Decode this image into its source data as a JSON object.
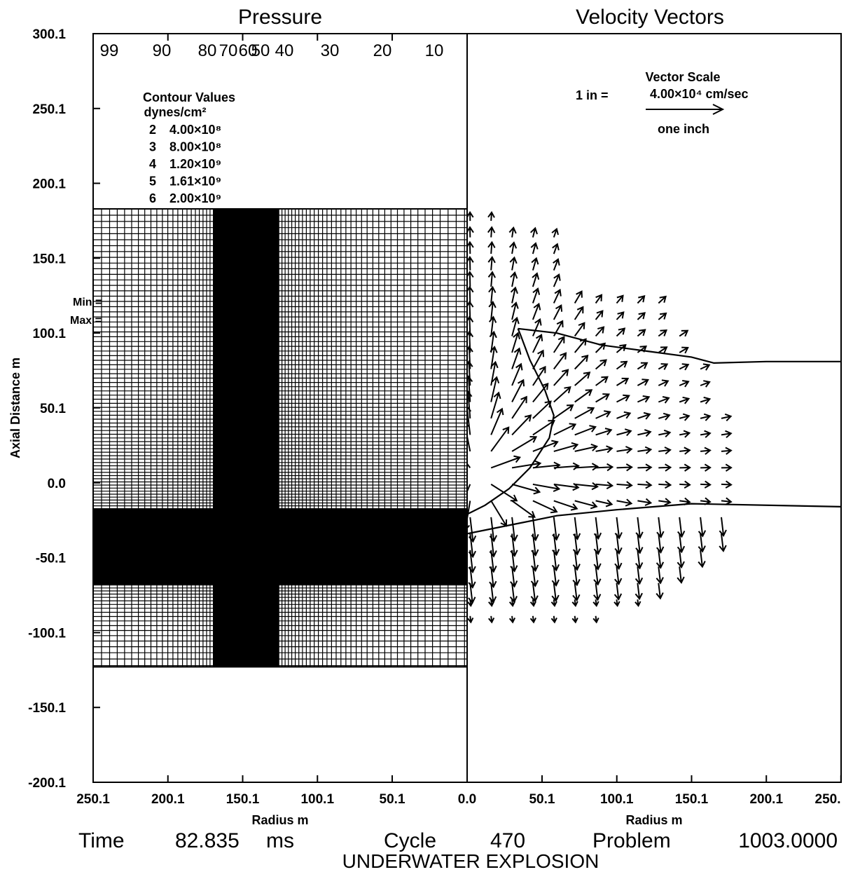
{
  "panels": {
    "left_title": "Pressure",
    "right_title": "Velocity Vectors"
  },
  "chart_data": [
    {
      "type": "contour",
      "title": "Pressure",
      "xlabel": "Radius m",
      "ylabel": "Axial Distance m",
      "x_ticks": [
        "250.1",
        "200.1",
        "150.1",
        "100.1",
        "50.1",
        "0.0"
      ],
      "y_ticks": [
        "300.1",
        "250.1",
        "200.1",
        "150.1",
        "100.1",
        "50.1",
        "0.0",
        "-50.1",
        "-100.1",
        "-150.1",
        "-200.1"
      ],
      "xlim": [
        250.1,
        0.0
      ],
      "ylim": [
        -200.1,
        300.1
      ],
      "top_contour_labels": [
        "99",
        "90",
        "80",
        "70",
        "60",
        "50",
        "40",
        "30",
        "20",
        "10"
      ],
      "legend": {
        "title": "Contour Values",
        "units": "dynes/cm²",
        "entries": [
          {
            "index": "2",
            "value": "4.00×10⁸"
          },
          {
            "index": "3",
            "value": "8.00×10⁸"
          },
          {
            "index": "4",
            "value": "1.20×10⁹"
          },
          {
            "index": "5",
            "value": "1.61×10⁹"
          },
          {
            "index": "6",
            "value": "2.00×10⁹"
          }
        ],
        "min_label": "Min =",
        "max_label": "Max ="
      },
      "mesh_region": {
        "r_max": 250.1,
        "z_top": 183,
        "z_bottom": -123
      },
      "dense_band_vertical_r": [
        126,
        170
      ],
      "dense_band_horizontal_z": [
        -68,
        -17
      ]
    },
    {
      "type": "vector",
      "title": "Velocity Vectors",
      "xlabel": "Radius m",
      "x_ticks": [
        "0.0",
        "50.1",
        "100.1",
        "150.1",
        "200.1",
        "250."
      ],
      "xlim": [
        0.0,
        250.1
      ],
      "ylim": [
        -200.1,
        300.1
      ],
      "scale": {
        "title": "Vector Scale",
        "prefix": "1 in =",
        "value": "4.00×10⁴ cm/sec",
        "arrow_label": "one inch"
      },
      "interfaces": {
        "upper": [
          [
            34,
            103
          ],
          [
            60,
            100
          ],
          [
            90,
            92
          ],
          [
            120,
            88
          ],
          [
            150,
            84
          ],
          [
            165,
            80
          ],
          [
            200,
            81
          ],
          [
            250.1,
            81
          ]
        ],
        "lower": [
          [
            0,
            -34
          ],
          [
            30,
            -28
          ],
          [
            60,
            -22
          ],
          [
            100,
            -18
          ],
          [
            150,
            -14
          ],
          [
            250.1,
            -16
          ]
        ],
        "bubble": [
          [
            0,
            -21
          ],
          [
            12,
            -15
          ],
          [
            28,
            -4
          ],
          [
            42,
            10
          ],
          [
            55,
            30
          ],
          [
            58,
            45
          ],
          [
            52,
            62
          ],
          [
            42,
            82
          ],
          [
            36,
            98
          ],
          [
            34,
            103
          ]
        ]
      }
    }
  ],
  "footer": {
    "time_label": "Time",
    "time_value": "82.835",
    "time_unit": "ms",
    "cycle_label": "Cycle",
    "cycle_value": "470",
    "problem_label": "Problem",
    "problem_value": "1003.0000",
    "caption": "UNDERWATER EXPLOSION"
  }
}
